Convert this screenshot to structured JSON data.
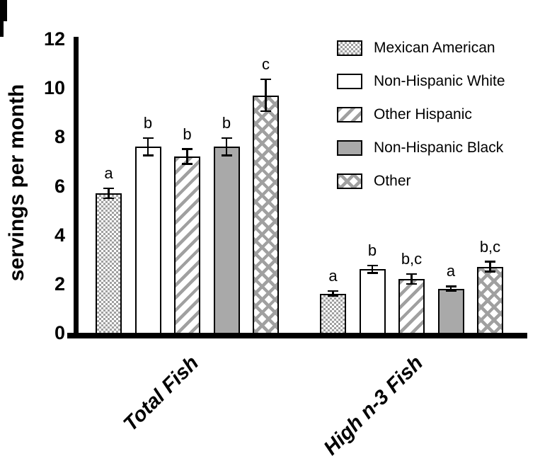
{
  "chart_data": {
    "type": "bar",
    "title": "",
    "xlabel": "",
    "ylabel": "servings per month",
    "ylim": [
      0,
      12
    ],
    "y_ticks": [
      0,
      2,
      4,
      6,
      8,
      10,
      12
    ],
    "grid": false,
    "legend_position": "top-right",
    "categories": [
      "Total Fish",
      "High n-3 Fish"
    ],
    "series": [
      {
        "name": "Mexican American",
        "pattern": "checker",
        "values": [
          5.7,
          1.6
        ],
        "errors": [
          0.2,
          0.1
        ],
        "sig_labels": [
          "a",
          "a"
        ]
      },
      {
        "name": "Non-Hispanic White",
        "pattern": "white",
        "values": [
          7.6,
          2.6
        ],
        "errors": [
          0.35,
          0.15
        ],
        "sig_labels": [
          "b",
          "b"
        ]
      },
      {
        "name": "Other Hispanic",
        "pattern": "diagonal-stripes",
        "values": [
          7.2,
          2.2
        ],
        "errors": [
          0.3,
          0.2
        ],
        "sig_labels": [
          "b",
          "b,c"
        ]
      },
      {
        "name": "Non-Hispanic Black",
        "pattern": "solid-gray",
        "values": [
          7.6,
          1.8
        ],
        "errors": [
          0.35,
          0.1
        ],
        "sig_labels": [
          "b",
          "a"
        ]
      },
      {
        "name": "Other",
        "pattern": "crosshatch",
        "values": [
          9.7,
          2.7
        ],
        "errors": [
          0.65,
          0.2
        ],
        "sig_labels": [
          "c",
          "b,c"
        ]
      }
    ],
    "colors": {
      "axis_black": "#000000",
      "pattern_gray": "#a0a0a0",
      "solid_gray": "#a9a9a9",
      "background": "#ffffff"
    }
  }
}
